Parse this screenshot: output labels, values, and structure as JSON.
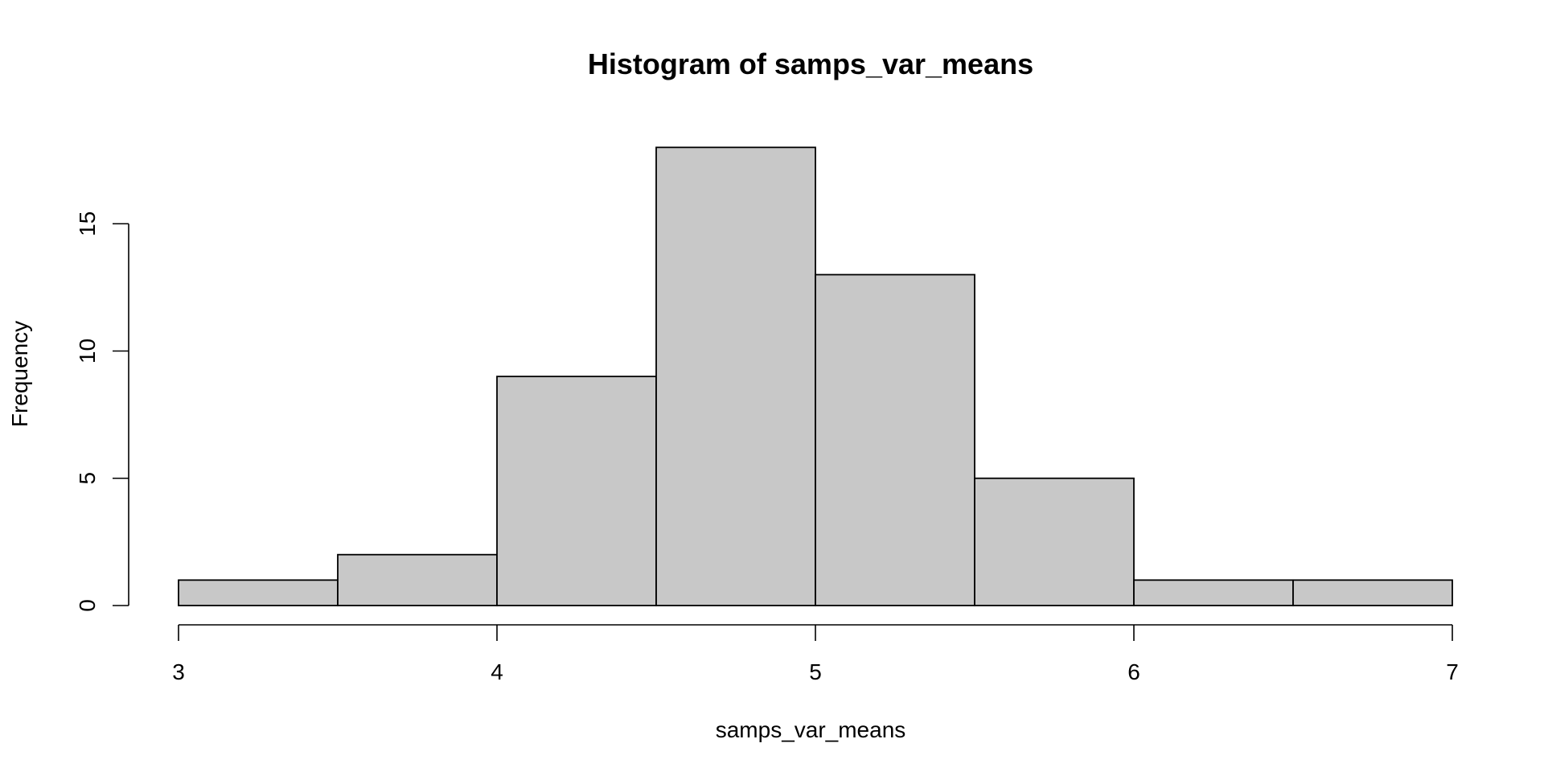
{
  "chart_data": {
    "type": "bar",
    "title": "Histogram of samps_var_means",
    "xlabel": "samps_var_means",
    "ylabel": "Frequency",
    "bins": [
      {
        "start": 3.0,
        "end": 3.5,
        "count": 1
      },
      {
        "start": 3.5,
        "end": 4.0,
        "count": 2
      },
      {
        "start": 4.0,
        "end": 4.5,
        "count": 9
      },
      {
        "start": 4.5,
        "end": 5.0,
        "count": 18
      },
      {
        "start": 5.0,
        "end": 5.5,
        "count": 13
      },
      {
        "start": 5.5,
        "end": 6.0,
        "count": 5
      },
      {
        "start": 6.0,
        "end": 6.5,
        "count": 1
      },
      {
        "start": 6.5,
        "end": 7.0,
        "count": 1
      }
    ],
    "xlim": [
      3,
      7
    ],
    "ylim": [
      0,
      18
    ],
    "x_ticks": [
      "3",
      "4",
      "5",
      "6",
      "7"
    ],
    "y_ticks": [
      "0",
      "5",
      "10",
      "15"
    ],
    "bar_color": "#c8c8c8",
    "grid": false
  }
}
